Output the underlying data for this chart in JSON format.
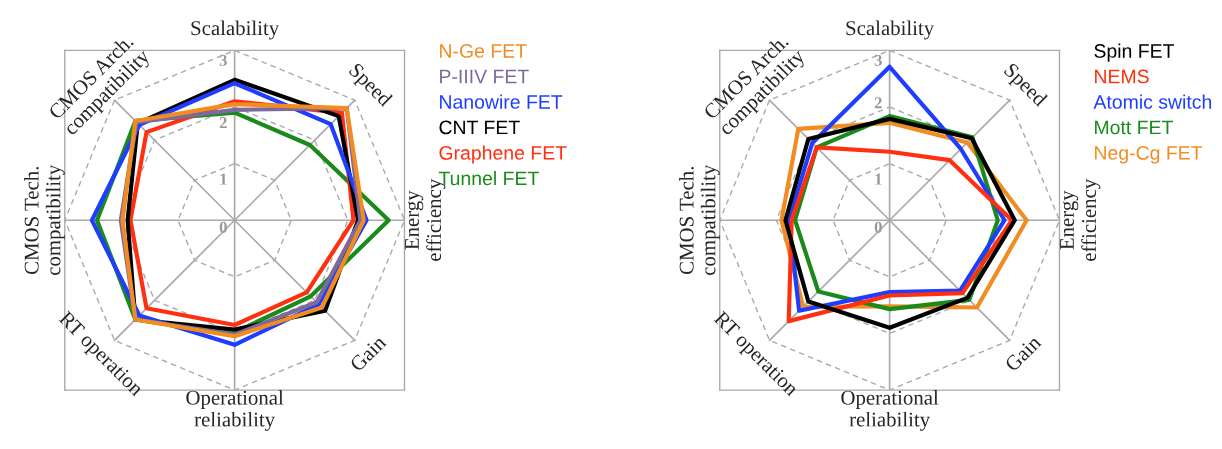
{
  "chart_data": [
    {
      "type": "radar",
      "categories": [
        "Scalability",
        "Speed",
        "Energy\nefficiency",
        "Gain",
        "Operational\nreliability",
        "RT operation",
        "CMOS Tech.\ncompatibility",
        "CMOS Arch.\ncompatibility"
      ],
      "ylim": [
        0,
        3
      ],
      "yticks": [
        0,
        1,
        2,
        3
      ],
      "grid": true,
      "legend": "right",
      "series": [
        {
          "name": "N-Ge FET",
          "color": "#f08c20",
          "values": [
            2.05,
            2.8,
            2.28,
            2.18,
            2.05,
            2.48,
            1.98,
            2.48
          ]
        },
        {
          "name": "P-IIIV FET",
          "color": "#7d6a9c",
          "values": [
            1.95,
            2.8,
            2.22,
            2.05,
            2.02,
            2.48,
            2.01,
            2.45
          ]
        },
        {
          "name": "Nanowire FET",
          "color": "#1f3dff",
          "values": [
            2.42,
            2.4,
            2.33,
            2.1,
            2.2,
            2.38,
            2.52,
            2.38
          ]
        },
        {
          "name": "CNT FET",
          "color": "#000000",
          "values": [
            2.48,
            2.6,
            2.18,
            2.26,
            1.93,
            2.48,
            1.89,
            2.42
          ]
        },
        {
          "name": "Graphene FET",
          "color": "#ff3010",
          "values": [
            2.1,
            2.68,
            2.1,
            1.8,
            1.85,
            2.2,
            1.84,
            2.2
          ]
        },
        {
          "name": "Tunnel FET",
          "color": "#1a8a1a",
          "values": [
            1.9,
            1.88,
            2.72,
            1.9,
            1.98,
            2.48,
            2.43,
            2.48
          ]
        }
      ]
    },
    {
      "type": "radar",
      "categories": [
        "Scalability",
        "Speed",
        "Energy\nefficiency",
        "Gain",
        "Operational\nreliability",
        "RT operation",
        "CMOS Tech.\ncompatibility",
        "CMOS Arch.\ncompatibility"
      ],
      "ylim": [
        0,
        3
      ],
      "yticks": [
        0,
        1,
        2,
        3
      ],
      "grid": true,
      "legend": "right",
      "series": [
        {
          "name": "Spin FET",
          "color": "#000000",
          "values": [
            1.79,
            2.05,
            2.21,
            1.94,
            1.9,
            2.03,
            1.84,
            2.03
          ]
        },
        {
          "name": "NEMS",
          "color": "#ff3010",
          "values": [
            1.21,
            1.5,
            2.16,
            1.82,
            1.33,
            2.52,
            1.73,
            1.82
          ]
        },
        {
          "name": "Atomic switch",
          "color": "#1f3dff",
          "values": [
            2.71,
            1.78,
            2.03,
            1.76,
            1.27,
            2.26,
            1.78,
            1.93
          ]
        },
        {
          "name": "Mott FET",
          "color": "#1a8a1a",
          "values": [
            1.84,
            2.07,
            1.91,
            1.99,
            1.57,
            1.78,
            1.67,
            1.82
          ]
        },
        {
          "name": "Neg-Cg FET",
          "color": "#f08c20",
          "values": [
            1.72,
            1.94,
            2.42,
            2.18,
            1.52,
            2.16,
            1.91,
            2.28
          ]
        }
      ]
    }
  ]
}
